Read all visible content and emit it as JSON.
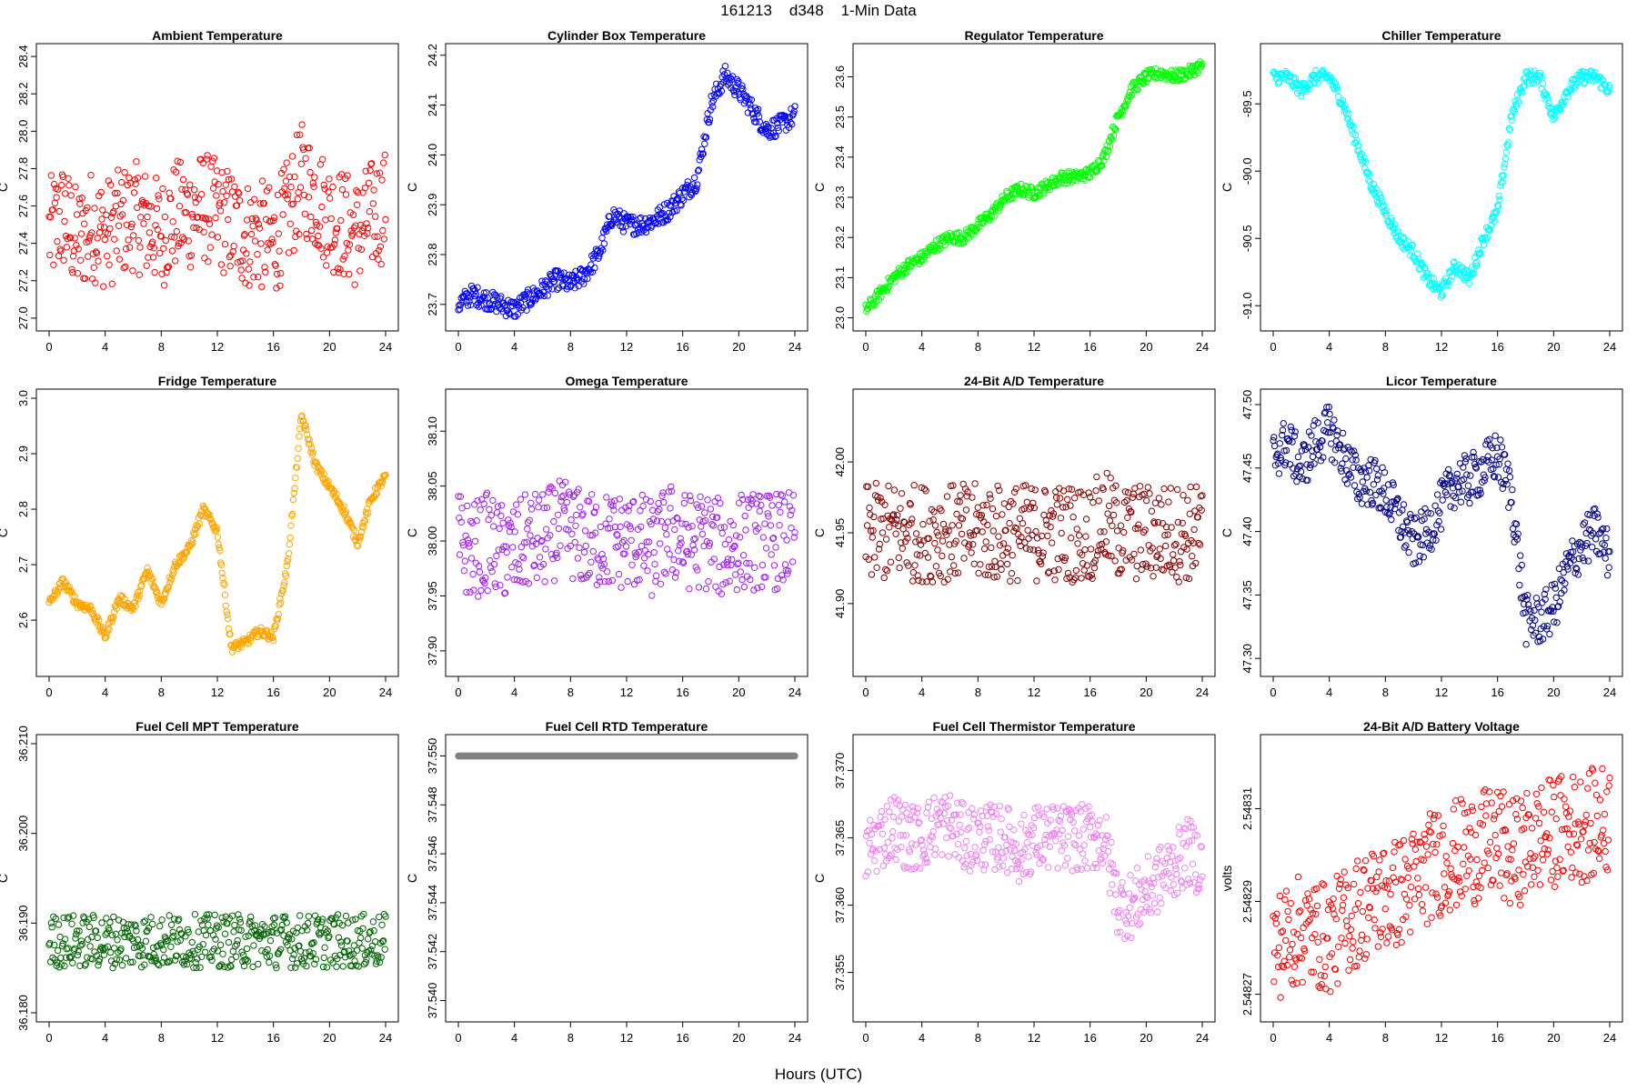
{
  "figure": {
    "title": "161213    d348    1-Min Data",
    "xlabel": "Hours (UTC)"
  },
  "chart_data": [
    {
      "type": "scatter",
      "title": "Ambient Temperature",
      "ylabel": "C",
      "color": "#ff0000",
      "xlim": [
        0,
        24
      ],
      "ylim": [
        26.98,
        28.42
      ],
      "yticks": [
        "27.0",
        "27.2",
        "27.4",
        "27.6",
        "27.8",
        "28.0",
        "28.2",
        "28.4"
      ],
      "xticks": [
        "0",
        "4",
        "8",
        "12",
        "16",
        "20",
        "24"
      ],
      "x": [
        0,
        1,
        2,
        3,
        4,
        5,
        6,
        7,
        8,
        9,
        10,
        11,
        12,
        13,
        14,
        15,
        16,
        17,
        18,
        19,
        20,
        21,
        22,
        23,
        24
      ],
      "y": [
        27.45,
        27.55,
        27.4,
        27.5,
        27.45,
        27.5,
        27.55,
        27.5,
        27.45,
        27.55,
        27.55,
        27.6,
        27.55,
        27.5,
        27.45,
        27.45,
        27.4,
        27.55,
        27.75,
        27.65,
        27.55,
        27.5,
        27.45,
        27.55,
        27.6
      ],
      "spread": 0.3
    },
    {
      "type": "scatter",
      "title": "Cylinder Box Temperature",
      "ylabel": "C",
      "color": "#0000ff",
      "xlim": [
        0,
        24
      ],
      "ylim": [
        23.665,
        24.205
      ],
      "yticks": [
        "23.7",
        "23.8",
        "23.9",
        "24.0",
        "24.1",
        "24.2"
      ],
      "xticks": [
        "0",
        "4",
        "8",
        "12",
        "16",
        "20",
        "24"
      ],
      "x": [
        0,
        1,
        2,
        3,
        4,
        5,
        6,
        7,
        8,
        9,
        10,
        11,
        12,
        13,
        14,
        15,
        16,
        17,
        18,
        19,
        20,
        21,
        22,
        23,
        24
      ],
      "y": [
        23.7,
        23.72,
        23.71,
        23.7,
        23.69,
        23.71,
        23.73,
        23.75,
        23.74,
        23.76,
        23.8,
        23.88,
        23.86,
        23.86,
        23.87,
        23.89,
        23.92,
        23.95,
        24.1,
        24.16,
        24.13,
        24.09,
        24.05,
        24.06,
        24.08
      ],
      "spread": 0.02
    },
    {
      "type": "scatter",
      "title": "Regulator Temperature",
      "ylabel": "C",
      "color": "#00ff00",
      "xlim": [
        0,
        24
      ],
      "ylim": [
        22.99,
        23.66
      ],
      "yticks": [
        "23.0",
        "23.1",
        "23.2",
        "23.3",
        "23.4",
        "23.5",
        "23.6"
      ],
      "xticks": [
        "0",
        "4",
        "8",
        "12",
        "16",
        "20",
        "24"
      ],
      "x": [
        0,
        1,
        2,
        3,
        4,
        5,
        6,
        7,
        8,
        9,
        10,
        11,
        12,
        13,
        14,
        15,
        16,
        17,
        18,
        19,
        20,
        21,
        22,
        23,
        24
      ],
      "y": [
        23.02,
        23.06,
        23.1,
        23.13,
        23.15,
        23.18,
        23.2,
        23.2,
        23.23,
        23.26,
        23.3,
        23.32,
        23.31,
        23.33,
        23.35,
        23.35,
        23.36,
        23.4,
        23.5,
        23.57,
        23.6,
        23.61,
        23.6,
        23.61,
        23.63
      ],
      "spread": 0.015
    },
    {
      "type": "scatter",
      "title": "Chiller Temperature",
      "ylabel": "C",
      "color": "#00ffff",
      "xlim": [
        0,
        24
      ],
      "ylim": [
        -91.12,
        -89.12
      ],
      "yticks": [
        "-91.0",
        "-90.5",
        "-90.0",
        "-89.5"
      ],
      "xticks": [
        "0",
        "4",
        "8",
        "12",
        "16",
        "20",
        "24"
      ],
      "x": [
        0,
        1,
        2,
        3,
        4,
        5,
        6,
        7,
        8,
        9,
        10,
        11,
        12,
        13,
        14,
        15,
        16,
        17,
        18,
        19,
        20,
        21,
        22,
        23,
        24
      ],
      "y": [
        -89.3,
        -89.3,
        -89.4,
        -89.3,
        -89.3,
        -89.5,
        -89.8,
        -90.1,
        -90.3,
        -90.5,
        -90.6,
        -90.8,
        -90.9,
        -90.7,
        -90.8,
        -90.5,
        -90.3,
        -89.6,
        -89.3,
        -89.3,
        -89.6,
        -89.4,
        -89.3,
        -89.3,
        -89.4
      ],
      "spread": 0.05
    },
    {
      "type": "scatter",
      "title": "Fridge Temperature",
      "ylabel": "C",
      "color": "#ffa500",
      "xlim": [
        0,
        24
      ],
      "ylim": [
        2.515,
        3.0
      ],
      "yticks": [
        "2.6",
        "2.7",
        "2.8",
        "2.9",
        "3.0"
      ],
      "xticks": [
        "0",
        "4",
        "8",
        "12",
        "16",
        "20",
        "24"
      ],
      "x": [
        0,
        1,
        2,
        3,
        4,
        5,
        6,
        7,
        8,
        9,
        10,
        11,
        12,
        13,
        14,
        15,
        16,
        17,
        18,
        19,
        20,
        21,
        22,
        23,
        24
      ],
      "y": [
        2.63,
        2.67,
        2.63,
        2.62,
        2.57,
        2.64,
        2.62,
        2.69,
        2.63,
        2.7,
        2.73,
        2.8,
        2.76,
        2.55,
        2.56,
        2.58,
        2.57,
        2.7,
        2.97,
        2.88,
        2.84,
        2.8,
        2.74,
        2.82,
        2.86
      ],
      "spread": 0.008
    },
    {
      "type": "scatter",
      "title": "Omega Temperature",
      "ylabel": "C",
      "color": "#a020f0",
      "xlim": [
        0,
        24
      ],
      "ylim": [
        37.885,
        38.13
      ],
      "yticks": [
        "37.90",
        "37.95",
        "38.00",
        "38.05",
        "38.10"
      ],
      "xticks": [
        "0",
        "4",
        "8",
        "12",
        "16",
        "20",
        "24"
      ],
      "x": [
        0,
        1,
        2,
        3,
        4,
        5,
        6,
        7,
        8,
        9,
        10,
        11,
        12,
        13,
        14,
        15,
        16,
        17,
        18,
        19,
        20,
        21,
        22,
        23,
        24
      ],
      "y": [
        38.0,
        37.99,
        38.0,
        37.99,
        37.99,
        38.0,
        38.0,
        38.01,
        38.01,
        38.0,
        38.0,
        38.0,
        38.0,
        38.0,
        37.99,
        38.01,
        38.0,
        38.0,
        38.0,
        37.99,
        38.0,
        38.0,
        38.0,
        38.0,
        38.0
      ],
      "spread": 0.045
    },
    {
      "type": "scatter",
      "title": "24-Bit A/D Temperature",
      "ylabel": "C",
      "color": "#8b0000",
      "xlim": [
        0,
        24
      ],
      "ylim": [
        41.855,
        42.045
      ],
      "yticks": [
        "41.90",
        "41.95",
        "42.00"
      ],
      "xticks": [
        "0",
        "4",
        "8",
        "12",
        "16",
        "20",
        "24"
      ],
      "x": [
        0,
        1,
        2,
        3,
        4,
        5,
        6,
        7,
        8,
        9,
        10,
        11,
        12,
        13,
        14,
        15,
        16,
        17,
        18,
        19,
        20,
        21,
        22,
        23,
        24
      ],
      "y": [
        41.95,
        41.95,
        41.95,
        41.95,
        41.95,
        41.95,
        41.95,
        41.95,
        41.95,
        41.95,
        41.95,
        41.95,
        41.95,
        41.95,
        41.95,
        41.95,
        41.95,
        41.96,
        41.95,
        41.95,
        41.95,
        41.95,
        41.95,
        41.95,
        41.95
      ],
      "spread": 0.035
    },
    {
      "type": "scatter",
      "title": "Licor Temperature",
      "ylabel": "C",
      "color": "#00008b",
      "xlim": [
        0,
        24
      ],
      "ylim": [
        47.293,
        47.505
      ],
      "yticks": [
        "47.30",
        "47.35",
        "47.40",
        "47.45",
        "47.50"
      ],
      "xticks": [
        "0",
        "4",
        "8",
        "12",
        "16",
        "20",
        "24"
      ],
      "x": [
        0,
        1,
        2,
        3,
        4,
        5,
        6,
        7,
        8,
        9,
        10,
        11,
        12,
        13,
        14,
        15,
        16,
        17,
        18,
        19,
        20,
        21,
        22,
        23,
        24
      ],
      "y": [
        47.46,
        47.47,
        47.45,
        47.47,
        47.48,
        47.46,
        47.44,
        47.44,
        47.43,
        47.41,
        47.39,
        47.4,
        47.42,
        47.44,
        47.44,
        47.45,
        47.46,
        47.43,
        47.33,
        47.33,
        47.34,
        47.37,
        47.39,
        47.4,
        47.38
      ],
      "spread": 0.02
    },
    {
      "type": "scatter",
      "title": "Fuel Cell MPT Temperature",
      "ylabel": "C",
      "color": "#006400",
      "xlim": [
        0,
        24
      ],
      "ylim": [
        36.18,
        36.21
      ],
      "yticks": [
        "36.180",
        "36.190",
        "36.200",
        "36.210"
      ],
      "xticks": [
        "0",
        "4",
        "8",
        "12",
        "16",
        "20",
        "24"
      ],
      "x": [
        0,
        1,
        2,
        3,
        4,
        5,
        6,
        7,
        8,
        9,
        10,
        11,
        12,
        13,
        14,
        15,
        16,
        17,
        18,
        19,
        20,
        21,
        22,
        23,
        24
      ],
      "y": [
        36.188,
        36.188,
        36.188,
        36.188,
        36.188,
        36.188,
        36.188,
        36.188,
        36.188,
        36.188,
        36.188,
        36.188,
        36.188,
        36.188,
        36.188,
        36.188,
        36.188,
        36.188,
        36.188,
        36.188,
        36.188,
        36.188,
        36.188,
        36.188,
        36.188
      ],
      "spread": 0.003
    },
    {
      "type": "scatter",
      "title": "Fuel Cell RTD Temperature",
      "ylabel": "C",
      "color": "#808080",
      "xlim": [
        0,
        24
      ],
      "ylim": [
        37.5395,
        37.5505
      ],
      "yticks": [
        "37.540",
        "37.542",
        "37.544",
        "37.546",
        "37.548",
        "37.550"
      ],
      "xticks": [
        "0",
        "4",
        "8",
        "12",
        "16",
        "20",
        "24"
      ],
      "x": [
        0,
        1,
        2,
        3,
        4,
        5,
        6,
        7,
        8,
        9,
        10,
        11,
        12,
        13,
        14,
        15,
        16,
        17,
        18,
        19,
        20,
        21,
        22,
        23,
        24
      ],
      "y": [
        37.55,
        37.55,
        37.55,
        37.55,
        37.55,
        37.55,
        37.55,
        37.55,
        37.55,
        37.55,
        37.55,
        37.55,
        37.55,
        37.55,
        37.55,
        37.55,
        37.55,
        37.55,
        37.55,
        37.55,
        37.55,
        37.55,
        37.55,
        37.55,
        37.55
      ],
      "spread": 0
    },
    {
      "type": "scatter",
      "title": "Fuel Cell Thermistor Temperature",
      "ylabel": "C",
      "color": "#ee82ee",
      "xlim": [
        0,
        24
      ],
      "ylim": [
        37.352,
        37.372
      ],
      "yticks": [
        "37.355",
        "37.360",
        "37.365",
        "37.370"
      ],
      "xticks": [
        "0",
        "4",
        "8",
        "12",
        "16",
        "20",
        "24"
      ],
      "x": [
        0,
        1,
        2,
        3,
        4,
        5,
        6,
        7,
        8,
        9,
        10,
        11,
        12,
        13,
        14,
        15,
        16,
        17,
        18,
        19,
        20,
        21,
        22,
        23,
        24
      ],
      "y": [
        37.364,
        37.365,
        37.366,
        37.365,
        37.365,
        37.366,
        37.366,
        37.365,
        37.365,
        37.365,
        37.365,
        37.364,
        37.365,
        37.365,
        37.365,
        37.365,
        37.365,
        37.365,
        37.36,
        37.36,
        37.361,
        37.362,
        37.363,
        37.364,
        37.363
      ],
      "spread": 0.0025
    },
    {
      "type": "scatter",
      "title": "24-Bit A/D Battery Voltage",
      "ylabel": "volts",
      "color": "#ff0000",
      "xlim": [
        0,
        24
      ],
      "ylim": [
        2.548266,
        2.548324
      ],
      "yticks": [
        "2.54827",
        "2.54829",
        "2.54831"
      ],
      "xticks": [
        "0",
        "4",
        "8",
        "12",
        "16",
        "20",
        "24"
      ],
      "x": [
        0,
        1,
        2,
        3,
        4,
        5,
        6,
        7,
        8,
        9,
        10,
        11,
        12,
        13,
        14,
        15,
        16,
        17,
        18,
        19,
        20,
        21,
        22,
        23,
        24
      ],
      "y": [
        2.54828,
        2.548282,
        2.548284,
        2.548283,
        2.548282,
        2.548285,
        2.548288,
        2.54829,
        2.548291,
        2.548292,
        2.548294,
        2.548297,
        2.548299,
        2.5483,
        2.548301,
        2.548302,
        2.548303,
        2.5483,
        2.548302,
        2.548304,
        2.548305,
        2.548306,
        2.548306,
        2.548307,
        2.548308
      ],
      "spread": 1.2e-05
    }
  ]
}
